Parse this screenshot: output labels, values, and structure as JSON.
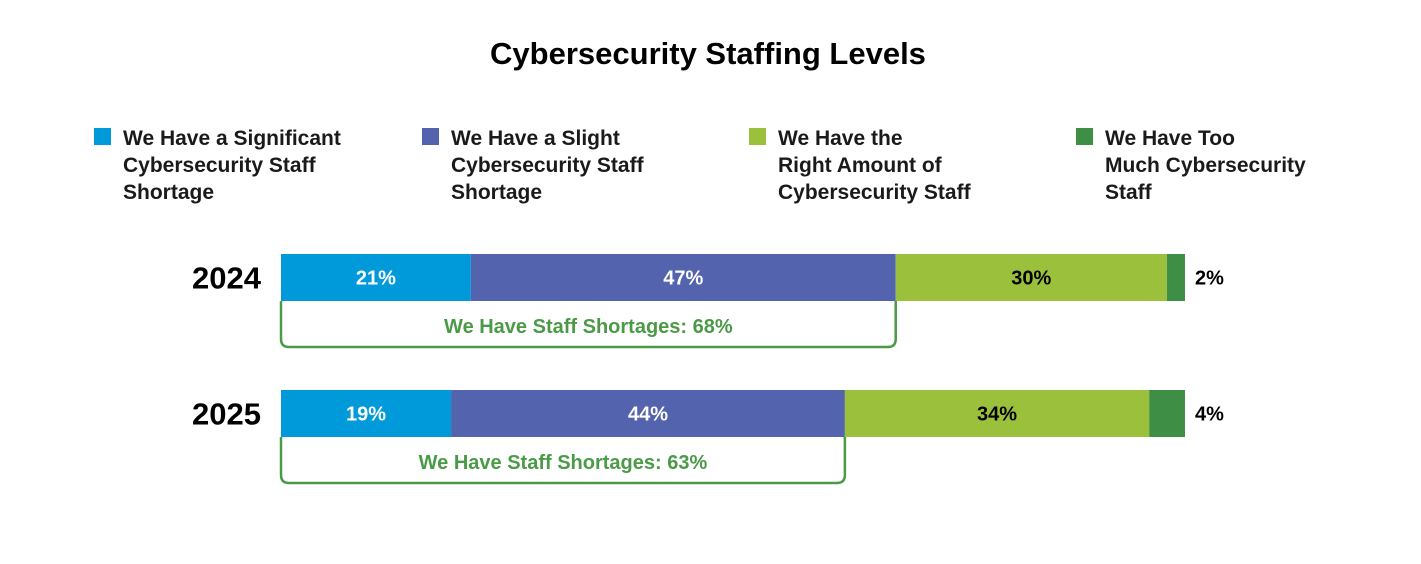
{
  "chart_data": {
    "type": "bar",
    "orientation": "horizontal",
    "stacked": true,
    "title": "Cybersecurity Staffing Levels",
    "categories": [
      "2024",
      "2025"
    ],
    "series": [
      {
        "name": "We Have a Significant Cybersecurity Staff Shortage",
        "legend_lines": [
          "We Have a Significant",
          "Cybersecurity Staff",
          "Shortage"
        ],
        "color": "#009ada",
        "label_color": "#ffffff",
        "values": [
          21,
          19
        ]
      },
      {
        "name": "We Have a Slight Cybersecurity Staff Shortage",
        "legend_lines": [
          "We Have a Slight",
          "Cybersecurity Staff",
          "Shortage"
        ],
        "color": "#5363ad",
        "label_color": "#ffffff",
        "values": [
          47,
          44
        ]
      },
      {
        "name": "We Have the Right Amount of Cybersecurity Staff",
        "legend_lines": [
          "We Have the",
          "Right Amount of",
          "Cybersecurity Staff"
        ],
        "color": "#9bc13c",
        "label_color": "#000000",
        "values": [
          30,
          34
        ]
      },
      {
        "name": "We Have Too Much Cybersecurity Staff",
        "legend_lines": [
          "We Have Too",
          "Much Cybersecurity",
          "Staff"
        ],
        "color": "#3e8e46",
        "label_color": "#000000",
        "values": [
          2,
          4
        ]
      }
    ],
    "value_suffix": "%",
    "bracket": {
      "color": "#4b9a47",
      "labels": [
        "We Have Staff Shortages: 68%",
        "We Have Staff Shortages: 63%"
      ]
    },
    "legend_position": "top",
    "grid": false
  }
}
